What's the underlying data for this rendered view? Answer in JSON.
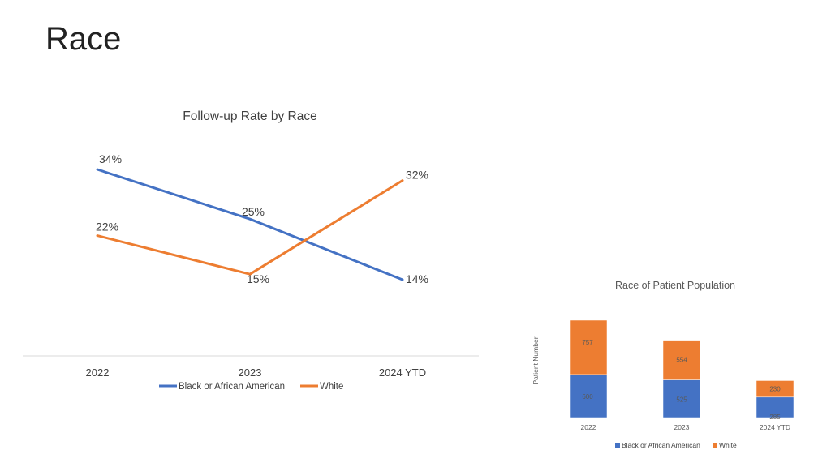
{
  "page": {
    "title": "Race"
  },
  "colors": {
    "black_or_african_american": "#4472C4",
    "white": "#ED7D31",
    "axis": "#D9D9D9"
  },
  "chart_data": [
    {
      "type": "line",
      "title": "Follow-up Rate by Race",
      "categories": [
        "2022",
        "2023",
        "2024 YTD"
      ],
      "series": [
        {
          "name": "Black or African American",
          "values": [
            34,
            25,
            14
          ],
          "labels": [
            "34%",
            "25%",
            "14%"
          ]
        },
        {
          "name": "White",
          "values": [
            22,
            15,
            32
          ],
          "labels": [
            "22%",
            "15%",
            "32%"
          ]
        }
      ],
      "unit": "%",
      "grid": false,
      "legend": "bottom"
    },
    {
      "type": "bar",
      "stacked": true,
      "title": "Race of Patient Population",
      "ylabel": "Patient Number",
      "categories": [
        "2022",
        "2023",
        "2024 YTD"
      ],
      "series": [
        {
          "name": "Black or African American",
          "values": [
            600,
            525,
            285
          ]
        },
        {
          "name": "White",
          "values": [
            757,
            554,
            230
          ]
        }
      ],
      "grid": false,
      "legend": "bottom"
    }
  ]
}
